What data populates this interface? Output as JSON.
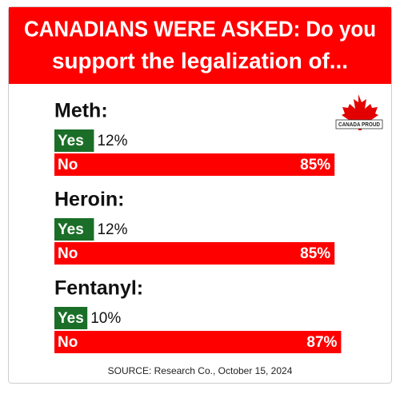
{
  "chart_data": {
    "type": "bar",
    "title": [
      "CANADIANS WERE ASKED: Do you",
      "support the legalization of..."
    ],
    "categories": [
      "Meth:",
      "Heroin:",
      "Fentanyl:"
    ],
    "series": [
      {
        "name": "Yes",
        "color": "#1b6e27",
        "values": [
          12,
          12,
          10
        ],
        "value_labels": [
          "12%",
          "12%",
          "10%"
        ]
      },
      {
        "name": "No",
        "color": "#ff0000",
        "values": [
          85,
          85,
          87
        ],
        "value_labels": [
          "85%",
          "85%",
          "87%"
        ]
      }
    ],
    "source": "SOURCE: Research Co., October 15, 2024",
    "logo": "CANADA PROUD"
  }
}
